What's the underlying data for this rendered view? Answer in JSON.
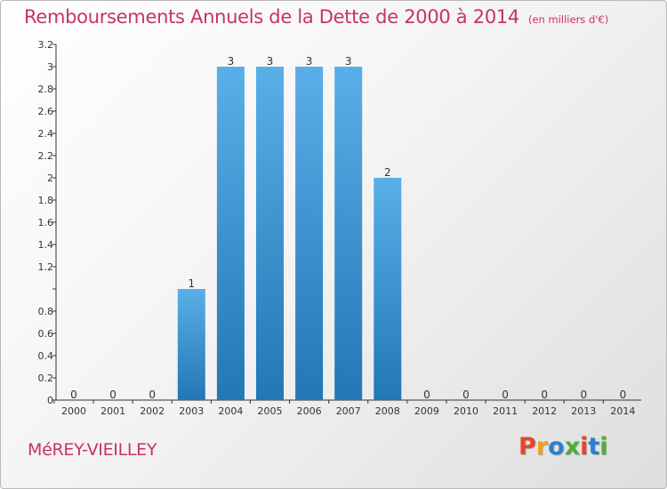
{
  "header": {
    "title": "Remboursements Annuels de la Dette de 2000 à 2014",
    "subtitle": "(en milliers d'€)"
  },
  "footer": {
    "commune": "MéREY-VIEILLEY",
    "brand": "Proxiti"
  },
  "colors": {
    "title": "#c8316e",
    "bar_top": "#5aafe8",
    "bar_bottom": "#2277b5",
    "brand_letters": [
      "#e6452a",
      "#f0a020",
      "#2a7fd0",
      "#4cae3a",
      "#e6452a",
      "#2a7fd0",
      "#4cae3a"
    ]
  },
  "chart_data": {
    "type": "bar",
    "title": "Remboursements Annuels de la Dette de 2000 à 2014",
    "subtitle": "(en milliers d'€)",
    "categories": [
      "2000",
      "2001",
      "2002",
      "2003",
      "2004",
      "2005",
      "2006",
      "2007",
      "2008",
      "2009",
      "2010",
      "2011",
      "2012",
      "2013",
      "2014"
    ],
    "values": [
      0,
      0,
      0,
      1,
      3,
      3,
      3,
      3,
      2,
      0,
      0,
      0,
      0,
      0,
      0
    ],
    "data_labels": [
      "0",
      "0",
      "0",
      "1",
      "3",
      "3",
      "3",
      "3",
      "2",
      "0",
      "0",
      "0",
      "0",
      "0",
      "0"
    ],
    "ylim": [
      0,
      3.2
    ],
    "yticks": [
      0,
      0.2,
      0.4,
      0.6,
      0.8,
      1,
      1.2,
      1.4,
      1.6,
      1.8,
      2,
      2.2,
      2.4,
      2.6,
      2.8,
      3,
      3.2
    ],
    "ytick_labels": [
      "0",
      "0.2",
      "0.4",
      "0.6",
      "0.8",
      "",
      "1.2",
      "1.4",
      "1.6",
      "1.8",
      "2",
      "2.2",
      "2.4",
      "2.6",
      "2.8",
      "3",
      "3.2"
    ],
    "grid": false,
    "legend": "none"
  }
}
